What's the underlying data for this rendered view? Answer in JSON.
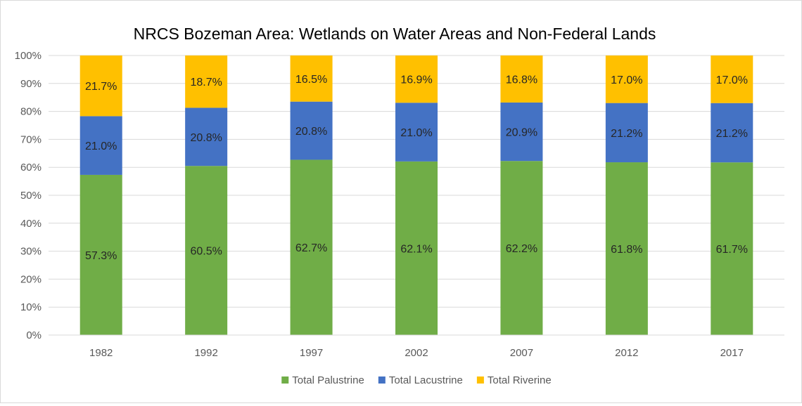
{
  "chart_data": {
    "type": "bar",
    "stacked": true,
    "percent_stacked": true,
    "title": "NRCS Bozeman Area: Wetlands on Water Areas and Non-Federal Lands",
    "categories": [
      "1982",
      "1992",
      "1997",
      "2002",
      "2007",
      "2012",
      "2017"
    ],
    "series": [
      {
        "name": "Total Palustrine",
        "color": "#70ad47",
        "values": [
          57.3,
          60.5,
          62.7,
          62.1,
          62.2,
          61.8,
          61.7
        ],
        "labels": [
          "57.3%",
          "60.5%",
          "62.7%",
          "62.1%",
          "62.2%",
          "61.8%",
          "61.7%"
        ]
      },
      {
        "name": "Total Lacustrine",
        "color": "#4472c4",
        "values": [
          21.0,
          20.8,
          20.8,
          21.0,
          20.9,
          21.2,
          21.2
        ],
        "labels": [
          "21.0%",
          "20.8%",
          "20.8%",
          "21.0%",
          "20.9%",
          "21.2%",
          "21.2%"
        ]
      },
      {
        "name": "Total Riverine",
        "color": "#ffc000",
        "values": [
          21.7,
          18.7,
          16.5,
          16.9,
          16.8,
          17.0,
          17.0
        ],
        "labels": [
          "21.7%",
          "18.7%",
          "16.5%",
          "16.9%",
          "16.8%",
          "17.0%",
          "17.0%"
        ]
      }
    ],
    "y_ticks": [
      "0%",
      "10%",
      "20%",
      "30%",
      "40%",
      "50%",
      "60%",
      "70%",
      "80%",
      "90%",
      "100%"
    ],
    "ylim": [
      0,
      100
    ],
    "grid": true,
    "legend_position": "bottom"
  }
}
